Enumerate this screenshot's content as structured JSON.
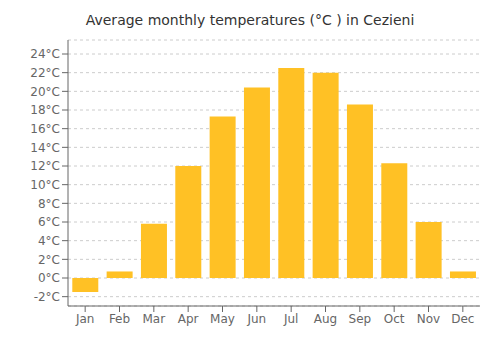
{
  "chart_data": {
    "type": "bar",
    "title": "Average monthly temperatures (°C ) in Cezieni",
    "categories": [
      "Jan",
      "Feb",
      "Mar",
      "Apr",
      "May",
      "Jun",
      "Jul",
      "Aug",
      "Sep",
      "Oct",
      "Nov",
      "Dec"
    ],
    "values": [
      -1.5,
      0.7,
      5.8,
      12.0,
      17.3,
      20.4,
      22.5,
      22.0,
      18.6,
      12.3,
      6.0,
      0.7
    ],
    "color": "#FFC125",
    "ylim": [
      -3,
      25.5
    ],
    "yticks": [
      {
        "value": -2,
        "label": "-2°C"
      },
      {
        "value": 0,
        "label": "0°C"
      },
      {
        "value": 2,
        "label": "2°C"
      },
      {
        "value": 4,
        "label": "4°C"
      },
      {
        "value": 6,
        "label": "6°C"
      },
      {
        "value": 8,
        "label": "8°C"
      },
      {
        "value": 10,
        "label": "10°C"
      },
      {
        "value": 12,
        "label": "12°C"
      },
      {
        "value": 14,
        "label": "14°C"
      },
      {
        "value": 16,
        "label": "16°C"
      },
      {
        "value": 18,
        "label": "18°C"
      },
      {
        "value": 20,
        "label": "20°C"
      },
      {
        "value": 22,
        "label": "22°C"
      },
      {
        "value": 24,
        "label": "24°C"
      }
    ],
    "grid": true
  }
}
